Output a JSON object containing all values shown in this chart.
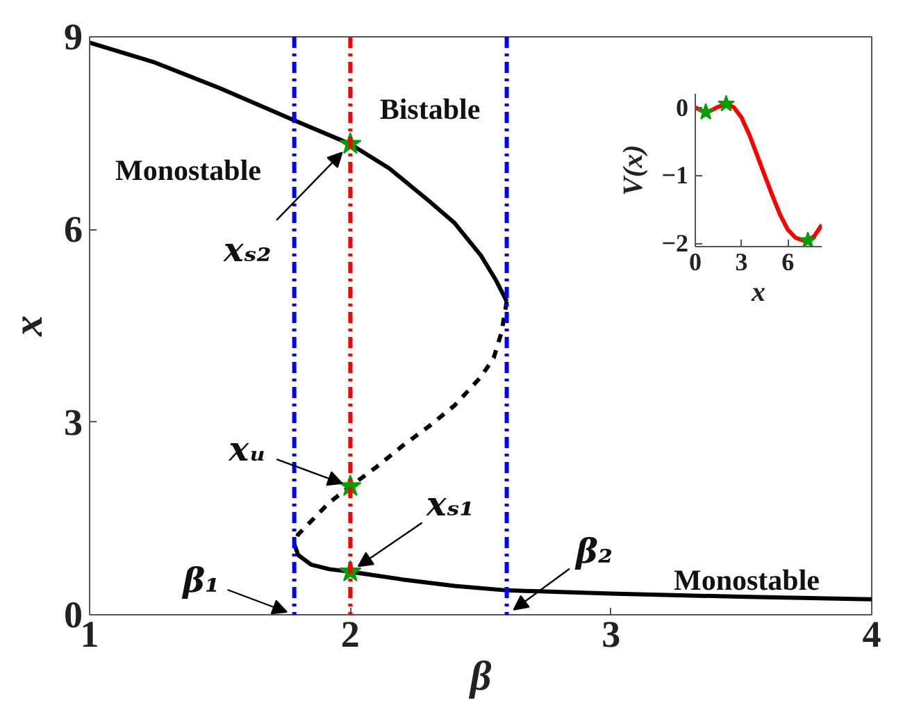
{
  "chart_data": [
    {
      "type": "line",
      "xlabel": "β",
      "ylabel": "x",
      "xlim": [
        1,
        4
      ],
      "ylim": [
        0,
        9
      ],
      "xticks": [
        1,
        2,
        3,
        4
      ],
      "yticks": [
        0,
        3,
        6,
        9
      ],
      "grid": false,
      "series": [
        {
          "color": "#000000",
          "line_style": "solid",
          "x": [
            1,
            1.25,
            1.5,
            1.785,
            2.0,
            2.15,
            2.3,
            2.4,
            2.5,
            2.56,
            2.6
          ],
          "values": [
            8.91,
            8.6,
            8.2,
            7.7,
            7.33,
            6.95,
            6.45,
            6.1,
            5.6,
            5.2,
            4.88
          ]
        },
        {
          "color": "#000000",
          "line_style": "dashed",
          "x": [
            2.6,
            2.58,
            2.55,
            2.5,
            2.4,
            2.3,
            2.2,
            2.1,
            2.0,
            1.92,
            1.85,
            1.8,
            1.785
          ],
          "values": [
            4.88,
            4.4,
            4.0,
            3.7,
            3.26,
            2.93,
            2.63,
            2.3,
            2.0,
            1.75,
            1.46,
            1.25,
            1.1
          ]
        },
        {
          "color": "#000000",
          "line_style": "solid",
          "x": [
            1.785,
            1.8,
            1.85,
            1.92,
            2.0,
            2.2,
            2.4,
            2.6,
            3.0,
            3.5,
            4.0
          ],
          "values": [
            1.1,
            0.93,
            0.78,
            0.71,
            0.67,
            0.55,
            0.45,
            0.38,
            0.33,
            0.28,
            0.24
          ]
        },
        {
          "type": "scatter",
          "marker": "star",
          "color": "#00a000",
          "x": [
            2,
            2,
            2
          ],
          "values": [
            7.33,
            2.0,
            0.67
          ]
        }
      ],
      "ref_lines": [
        {
          "axis": "x",
          "value": 1.785,
          "color": "#0000ff",
          "line_style": "dashed"
        },
        {
          "axis": "x",
          "value": 2.0,
          "color": "#ff0000",
          "line_style": "dashed"
        },
        {
          "axis": "x",
          "value": 2.6,
          "color": "#0000ff",
          "line_style": "dashed"
        }
      ],
      "annotations": [
        "Monostable",
        "Bistable",
        "Monostable",
        {
          "text": "xₛ₂",
          "x": 2,
          "y": 7.33
        },
        {
          "text": "xᵤ",
          "x": 2,
          "y": 2.0
        },
        {
          "text": "xₛ₁",
          "x": 2,
          "y": 0.67
        },
        {
          "text": "β₁",
          "x": 1.785,
          "y": 0
        },
        {
          "text": "β₂",
          "x": 2.6,
          "y": 0
        }
      ]
    },
    {
      "type": "line",
      "xlabel": "x",
      "ylabel": "V(x)",
      "xlim": [
        0,
        8.2
      ],
      "ylim": [
        -2.05,
        0.2
      ],
      "xticks": [
        0,
        3,
        6
      ],
      "yticks": [
        -2,
        -1,
        0
      ],
      "grid": false,
      "series": [
        {
          "color": "#ff0000",
          "line_style": "solid",
          "x": [
            0,
            0.4,
            0.68,
            1.0,
            1.4,
            2.0,
            2.5,
            3.0,
            3.5,
            4.0,
            4.5,
            5.0,
            5.5,
            6.0,
            6.5,
            7.0,
            7.3,
            7.7,
            8.0,
            8.2
          ],
          "values": [
            0.0,
            -0.05,
            -0.07,
            -0.05,
            0.0,
            0.05,
            0.0,
            -0.15,
            -0.4,
            -0.7,
            -1.0,
            -1.3,
            -1.58,
            -1.8,
            -1.92,
            -1.96,
            -1.96,
            -1.9,
            -1.8,
            -1.73
          ]
        },
        {
          "type": "scatter",
          "marker": "star",
          "color": "#00a000",
          "x": [
            0.68,
            2.0,
            7.3
          ],
          "values": [
            -0.07,
            0.05,
            -1.96
          ]
        }
      ]
    }
  ]
}
